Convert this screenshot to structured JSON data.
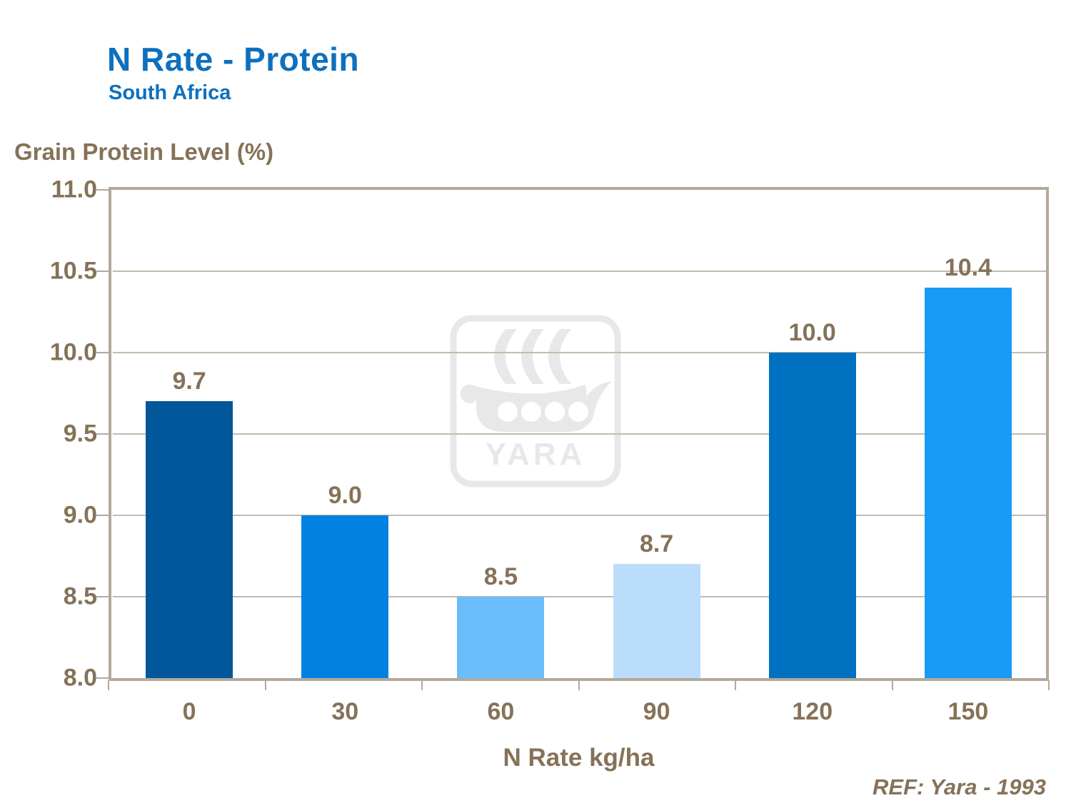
{
  "header": {
    "title": "N Rate - Protein",
    "subtitle": "South Africa"
  },
  "ref_note": "REF: Yara - 1993",
  "watermark": {
    "brand": "YARA",
    "color": "#E8E8E8"
  },
  "colors": {
    "title_blue": "#0E70BD",
    "text_brown": "#857258",
    "axis_frame": "#B3A99C",
    "gridline": "#C4BBAE"
  },
  "chart_data": {
    "type": "bar",
    "title": "N Rate - Protein (South Africa)",
    "categories": [
      "0",
      "30",
      "60",
      "90",
      "120",
      "150"
    ],
    "values": [
      9.7,
      9.0,
      8.5,
      8.7,
      10.0,
      10.4
    ],
    "bar_labels": [
      "9.7",
      "9.0",
      "8.5",
      "8.7",
      "10.0",
      "10.4"
    ],
    "bar_colors": [
      "#02579B",
      "#0182E2",
      "#6ABCFA",
      "#B9DDFA",
      "#0071C0",
      "#189AF7"
    ],
    "xlabel": "N Rate kg/ha",
    "ylabel": "Grain Protein Level (%)",
    "ylim": [
      8.0,
      11.0
    ],
    "ytick_step": 0.5,
    "yticks": [
      "11.0",
      "10.5",
      "10.0",
      "9.5",
      "9.0",
      "8.5",
      "8.0"
    ],
    "grid": true,
    "legend_position": "none"
  }
}
